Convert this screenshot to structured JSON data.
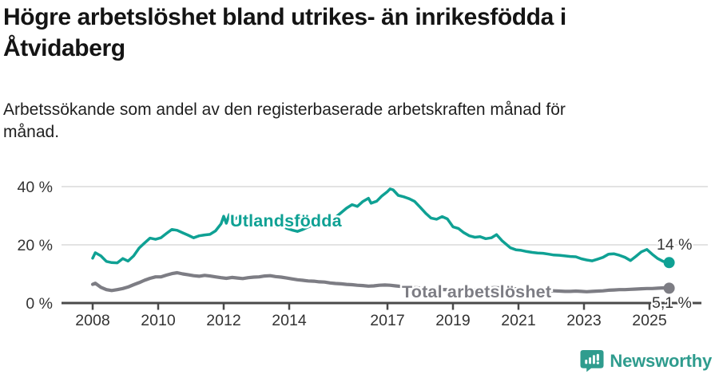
{
  "header": {
    "title_lines": [
      "Högre arbetslöshet bland utrikes- än inrikesfödda i",
      "Åtvidaberg"
    ],
    "subtitle_lines": [
      "Arbetssökande som andel av den registerbaserade arbetskraften månad för",
      "månad."
    ]
  },
  "footer": {
    "brand": "Newsworthy",
    "logo_icon": "bar-chart-speech-bubble"
  },
  "colors": {
    "foreign_born_line": "#0fa194",
    "total_line": "#7d7d84",
    "axis": "#4a4a4a",
    "gridline": "#dadada",
    "tick_text": "#333333",
    "brand_teal": "#2f9c8e"
  },
  "chart_data": {
    "type": "line",
    "title": "Högre arbetslöshet bland utrikes- än inrikesfödda i Åtvidaberg",
    "subtitle": "Arbetssökande som andel av den registerbaserade arbetskraften månad för månad.",
    "xlabel": "",
    "ylabel": "",
    "xlim": [
      2007.9,
      2025.75
    ],
    "ylim": [
      0,
      44
    ],
    "grid": "horizontal",
    "legend_position": "inline-on-line",
    "x_ticks": [
      2008,
      2010,
      2012,
      2014,
      2017,
      2019,
      2021,
      2023,
      2025
    ],
    "y_ticks": [
      {
        "value": 0,
        "label": "0 %"
      },
      {
        "value": 20,
        "label": "20 %"
      },
      {
        "value": 40,
        "label": "40 %"
      }
    ],
    "series": [
      {
        "name": "Utlandsfödda",
        "color": "#0fa194",
        "end_label": "14 %",
        "end_value": 14,
        "points": [
          [
            2008.0,
            15.4
          ],
          [
            2008.08,
            17.3
          ],
          [
            2008.25,
            16.2
          ],
          [
            2008.42,
            14.3
          ],
          [
            2008.58,
            13.9
          ],
          [
            2008.75,
            13.8
          ],
          [
            2008.92,
            15.3
          ],
          [
            2009.08,
            14.4
          ],
          [
            2009.25,
            16.2
          ],
          [
            2009.42,
            18.9
          ],
          [
            2009.58,
            20.6
          ],
          [
            2009.75,
            22.3
          ],
          [
            2009.92,
            21.9
          ],
          [
            2010.08,
            22.4
          ],
          [
            2010.25,
            23.9
          ],
          [
            2010.42,
            25.3
          ],
          [
            2010.58,
            25.0
          ],
          [
            2010.75,
            24.1
          ],
          [
            2010.92,
            23.3
          ],
          [
            2011.08,
            22.4
          ],
          [
            2011.25,
            23.1
          ],
          [
            2011.42,
            23.4
          ],
          [
            2011.58,
            23.6
          ],
          [
            2011.75,
            24.8
          ],
          [
            2011.92,
            27.2
          ],
          [
            2012.0,
            29.8
          ],
          [
            2012.08,
            27.4
          ],
          [
            2012.17,
            30.4
          ],
          [
            2012.25,
            28.2
          ],
          [
            2012.42,
            29.4
          ],
          [
            2012.58,
            28.6
          ],
          [
            2012.75,
            29.2
          ],
          [
            2012.92,
            28.3
          ],
          [
            2013.08,
            28.8
          ],
          [
            2013.25,
            27.5
          ],
          [
            2013.42,
            26.9
          ],
          [
            2013.58,
            26.3
          ],
          [
            2013.75,
            26.6
          ],
          [
            2013.92,
            25.7
          ],
          [
            2014.08,
            25.1
          ],
          [
            2014.25,
            24.6
          ],
          [
            2014.42,
            25.3
          ],
          [
            2014.58,
            26.1
          ],
          [
            2014.75,
            27.0
          ],
          [
            2014.92,
            27.7
          ],
          [
            2015.08,
            28.2
          ],
          [
            2015.25,
            28.8
          ],
          [
            2015.42,
            29.5
          ],
          [
            2015.58,
            31.0
          ],
          [
            2015.75,
            32.6
          ],
          [
            2015.92,
            33.8
          ],
          [
            2016.08,
            33.2
          ],
          [
            2016.25,
            34.9
          ],
          [
            2016.42,
            36.0
          ],
          [
            2016.5,
            34.3
          ],
          [
            2016.67,
            35.0
          ],
          [
            2016.83,
            36.8
          ],
          [
            2017.0,
            38.3
          ],
          [
            2017.08,
            39.2
          ],
          [
            2017.17,
            38.9
          ],
          [
            2017.33,
            37.0
          ],
          [
            2017.5,
            36.5
          ],
          [
            2017.67,
            35.8
          ],
          [
            2017.83,
            34.9
          ],
          [
            2018.0,
            32.9
          ],
          [
            2018.17,
            30.8
          ],
          [
            2018.33,
            29.2
          ],
          [
            2018.5,
            28.8
          ],
          [
            2018.67,
            29.7
          ],
          [
            2018.83,
            28.9
          ],
          [
            2019.0,
            26.2
          ],
          [
            2019.17,
            25.6
          ],
          [
            2019.33,
            24.2
          ],
          [
            2019.5,
            23.1
          ],
          [
            2019.67,
            22.6
          ],
          [
            2019.83,
            22.8
          ],
          [
            2020.0,
            22.1
          ],
          [
            2020.17,
            22.4
          ],
          [
            2020.33,
            23.5
          ],
          [
            2020.5,
            21.4
          ],
          [
            2020.75,
            19.0
          ],
          [
            2020.92,
            18.3
          ],
          [
            2021.08,
            18.1
          ],
          [
            2021.25,
            17.7
          ],
          [
            2021.42,
            17.4
          ],
          [
            2021.58,
            17.2
          ],
          [
            2021.75,
            17.1
          ],
          [
            2021.92,
            16.8
          ],
          [
            2022.08,
            16.5
          ],
          [
            2022.25,
            16.4
          ],
          [
            2022.42,
            16.2
          ],
          [
            2022.58,
            16.0
          ],
          [
            2022.75,
            15.9
          ],
          [
            2022.92,
            15.2
          ],
          [
            2023.08,
            14.8
          ],
          [
            2023.25,
            14.5
          ],
          [
            2023.42,
            15.1
          ],
          [
            2023.58,
            15.7
          ],
          [
            2023.75,
            16.8
          ],
          [
            2023.92,
            16.9
          ],
          [
            2024.08,
            16.4
          ],
          [
            2024.25,
            15.7
          ],
          [
            2024.42,
            14.6
          ],
          [
            2024.58,
            16.0
          ],
          [
            2024.75,
            17.6
          ],
          [
            2024.92,
            18.4
          ],
          [
            2025.08,
            16.8
          ],
          [
            2025.25,
            15.3
          ],
          [
            2025.42,
            14.3
          ],
          [
            2025.6,
            13.9
          ]
        ]
      },
      {
        "name": "Total arbetslöshet",
        "color": "#7d7d84",
        "end_label": "5,1 %",
        "end_value": 5.1,
        "points": [
          [
            2008.0,
            6.4
          ],
          [
            2008.08,
            6.8
          ],
          [
            2008.25,
            5.4
          ],
          [
            2008.42,
            4.6
          ],
          [
            2008.58,
            4.3
          ],
          [
            2008.75,
            4.6
          ],
          [
            2008.92,
            5.0
          ],
          [
            2009.08,
            5.5
          ],
          [
            2009.25,
            6.3
          ],
          [
            2009.42,
            7.0
          ],
          [
            2009.58,
            7.8
          ],
          [
            2009.75,
            8.5
          ],
          [
            2009.92,
            9.0
          ],
          [
            2010.08,
            9.0
          ],
          [
            2010.25,
            9.6
          ],
          [
            2010.42,
            10.1
          ],
          [
            2010.58,
            10.4
          ],
          [
            2010.75,
            10.0
          ],
          [
            2010.92,
            9.7
          ],
          [
            2011.08,
            9.4
          ],
          [
            2011.25,
            9.2
          ],
          [
            2011.42,
            9.5
          ],
          [
            2011.58,
            9.3
          ],
          [
            2011.75,
            9.0
          ],
          [
            2011.92,
            8.7
          ],
          [
            2012.08,
            8.5
          ],
          [
            2012.25,
            8.8
          ],
          [
            2012.42,
            8.6
          ],
          [
            2012.58,
            8.4
          ],
          [
            2012.75,
            8.7
          ],
          [
            2012.92,
            8.9
          ],
          [
            2013.08,
            9.0
          ],
          [
            2013.25,
            9.3
          ],
          [
            2013.42,
            9.4
          ],
          [
            2013.58,
            9.1
          ],
          [
            2013.75,
            8.9
          ],
          [
            2013.92,
            8.6
          ],
          [
            2014.08,
            8.3
          ],
          [
            2014.25,
            8.0
          ],
          [
            2014.42,
            7.8
          ],
          [
            2014.58,
            7.6
          ],
          [
            2014.75,
            7.5
          ],
          [
            2014.92,
            7.3
          ],
          [
            2015.08,
            7.2
          ],
          [
            2015.25,
            6.9
          ],
          [
            2015.42,
            6.7
          ],
          [
            2015.58,
            6.6
          ],
          [
            2015.75,
            6.4
          ],
          [
            2015.92,
            6.3
          ],
          [
            2016.08,
            6.1
          ],
          [
            2016.25,
            6.0
          ],
          [
            2016.42,
            5.8
          ],
          [
            2016.58,
            5.9
          ],
          [
            2016.75,
            6.1
          ],
          [
            2016.92,
            6.2
          ],
          [
            2017.08,
            6.1
          ],
          [
            2017.25,
            5.9
          ],
          [
            2017.42,
            5.7
          ],
          [
            2017.58,
            5.5
          ],
          [
            2017.75,
            5.3
          ],
          [
            2017.92,
            5.2
          ],
          [
            2018.08,
            5.0
          ],
          [
            2018.25,
            4.9
          ],
          [
            2018.42,
            4.8
          ],
          [
            2018.58,
            4.7
          ],
          [
            2018.75,
            4.6
          ],
          [
            2018.92,
            4.6
          ],
          [
            2019.08,
            4.5
          ],
          [
            2019.25,
            4.4
          ],
          [
            2019.42,
            4.4
          ],
          [
            2019.58,
            4.5
          ],
          [
            2019.75,
            4.6
          ],
          [
            2019.92,
            4.8
          ],
          [
            2020.08,
            5.1
          ],
          [
            2020.25,
            5.3
          ],
          [
            2020.42,
            5.2
          ],
          [
            2020.58,
            5.1
          ],
          [
            2020.75,
            5.0
          ],
          [
            2020.92,
            4.9
          ],
          [
            2021.08,
            4.7
          ],
          [
            2021.25,
            4.6
          ],
          [
            2021.42,
            4.5
          ],
          [
            2021.58,
            4.4
          ],
          [
            2021.75,
            4.3
          ],
          [
            2021.92,
            4.3
          ],
          [
            2022.08,
            4.2
          ],
          [
            2022.25,
            4.1
          ],
          [
            2022.42,
            4.0
          ],
          [
            2022.58,
            4.0
          ],
          [
            2022.75,
            4.1
          ],
          [
            2022.92,
            4.0
          ],
          [
            2023.08,
            3.9
          ],
          [
            2023.25,
            4.0
          ],
          [
            2023.42,
            4.1
          ],
          [
            2023.58,
            4.2
          ],
          [
            2023.75,
            4.4
          ],
          [
            2023.92,
            4.5
          ],
          [
            2024.08,
            4.6
          ],
          [
            2024.25,
            4.6
          ],
          [
            2024.42,
            4.7
          ],
          [
            2024.58,
            4.8
          ],
          [
            2024.75,
            4.9
          ],
          [
            2024.92,
            5.0
          ],
          [
            2025.08,
            5.0
          ],
          [
            2025.25,
            5.1
          ],
          [
            2025.42,
            5.2
          ],
          [
            2025.6,
            5.1
          ]
        ]
      }
    ]
  }
}
